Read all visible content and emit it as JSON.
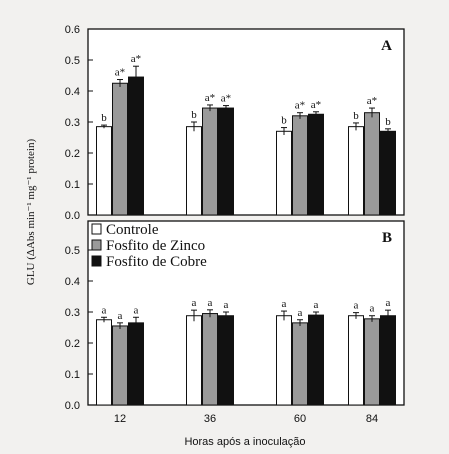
{
  "chart_data": {
    "type": "bar",
    "ylabel": "GLU (ΔAbs min⁻¹ mg⁻¹ protein)",
    "xlabel": "Horas após a inoculação",
    "categories": [
      "12",
      "36",
      "60",
      "84"
    ],
    "legend": {
      "placement": "top-left of panel B",
      "entries": [
        "Controle",
        "Fosfito de Zinco",
        "Fosfito de Cobre"
      ]
    },
    "colors": [
      "#ffffff",
      "#9a9a9a",
      "#111111"
    ],
    "panels": [
      {
        "label": "A",
        "ylim": [
          0,
          0.6
        ],
        "yticks": [
          "0.0",
          "0.1",
          "0.2",
          "0.3",
          "0.4",
          "0.5",
          "0.6"
        ],
        "series": [
          {
            "name": "Controle",
            "values": [
              0.285,
              0.285,
              0.27,
              0.285
            ],
            "errors": [
              0.005,
              0.015,
              0.012,
              0.012
            ],
            "letters": [
              "b",
              "b",
              "b",
              "b"
            ]
          },
          {
            "name": "Fosfito de Zinco",
            "values": [
              0.425,
              0.345,
              0.32,
              0.33
            ],
            "errors": [
              0.012,
              0.01,
              0.01,
              0.015
            ],
            "letters": [
              "a*",
              "a*",
              "a*",
              "a*"
            ]
          },
          {
            "name": "Fosfito de Cobre",
            "values": [
              0.445,
              0.345,
              0.325,
              0.27
            ],
            "errors": [
              0.035,
              0.008,
              0.008,
              0.008
            ],
            "letters": [
              "a*",
              "a*",
              "a*",
              "b"
            ]
          }
        ]
      },
      {
        "label": "B",
        "ylim": [
          0,
          0.6
        ],
        "yticks": [
          "0.0",
          "0.1",
          "0.2",
          "0.3",
          "0.4",
          "0.5"
        ],
        "series": [
          {
            "name": "Controle",
            "values": [
              0.275,
              0.288,
              0.288,
              0.288
            ],
            "errors": [
              0.008,
              0.018,
              0.015,
              0.01
            ],
            "letters": [
              "a",
              "a",
              "a",
              "a"
            ]
          },
          {
            "name": "Fosfito de Zinco",
            "values": [
              0.255,
              0.295,
              0.265,
              0.278
            ],
            "errors": [
              0.01,
              0.012,
              0.01,
              0.01
            ],
            "letters": [
              "a",
              "a",
              "a",
              "a"
            ]
          },
          {
            "name": "Fosfito de Cobre",
            "values": [
              0.265,
              0.288,
              0.29,
              0.288
            ],
            "errors": [
              0.018,
              0.012,
              0.01,
              0.018
            ],
            "letters": [
              "a",
              "a",
              "a",
              "a"
            ]
          }
        ]
      }
    ]
  }
}
